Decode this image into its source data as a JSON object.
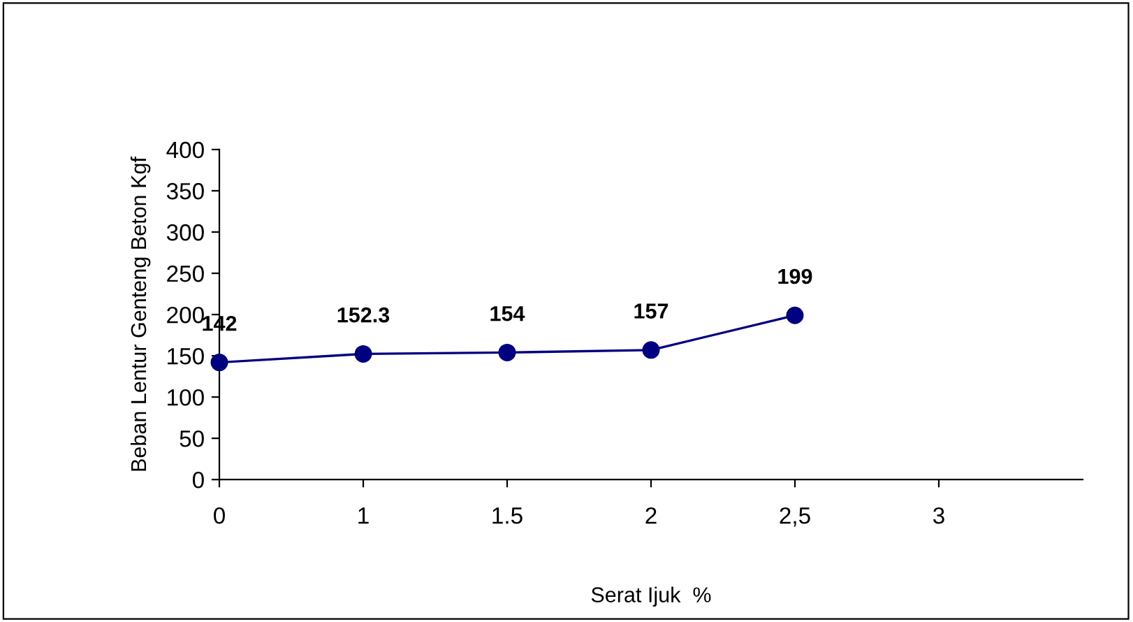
{
  "chart_data": {
    "type": "line",
    "xlabel": "Serat Ijuk  %",
    "ylabel": "Beban Lentur Genteng Beton Kgf",
    "categories": [
      "0",
      "1",
      "1.5",
      "2",
      "2,5",
      "3"
    ],
    "series": [
      {
        "color": "#000080",
        "values": [
          142,
          152.3,
          154,
          157,
          199,
          null
        ]
      }
    ],
    "ylim": [
      0,
      400
    ],
    "yticks": [
      0,
      50,
      100,
      150,
      200,
      250,
      300,
      350,
      400
    ],
    "data_labels": true,
    "grid": false,
    "legend": false,
    "marker": "circle",
    "line_style": "solid"
  }
}
